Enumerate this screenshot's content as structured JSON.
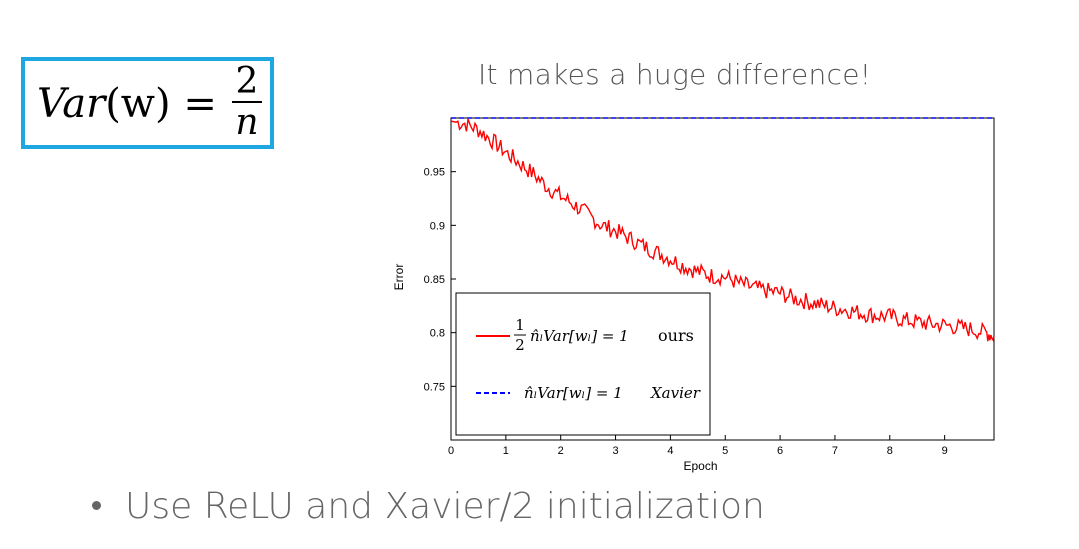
{
  "formula": {
    "lhs_fn": "Var",
    "lhs_arg": "(w)",
    "equals": "=",
    "numerator": "2",
    "denominator": "n"
  },
  "headline": "It makes a huge difference!",
  "bullet": "Use ReLU and Xavier/2 initialization",
  "colors": {
    "formula_border": "#1ea7e1",
    "ours": "#ff0000",
    "xavier": "#0000ff"
  },
  "chart_data": {
    "type": "line",
    "xlabel": "Epoch",
    "ylabel": "Error",
    "xlim": [
      0,
      9.9
    ],
    "ylim": [
      0.7,
      1.0
    ],
    "xticks": [
      0,
      1,
      2,
      3,
      4,
      5,
      6,
      7,
      8,
      9
    ],
    "yticks": [
      0.75,
      0.8,
      0.85,
      0.9,
      0.95
    ],
    "ytick_labels": [
      "0.75",
      "0.8",
      "0.85",
      "0.9",
      "0.95"
    ],
    "legend_position": "lower-left",
    "series": [
      {
        "name": "½ n̂ₗ Var[wₗ] = 1  ours",
        "legend_math": "n̂ₗVar[wₗ] = 1",
        "legend_frac": [
          "1",
          "2"
        ],
        "legend_tag": "ours",
        "color": "#ff0000",
        "style": "solid",
        "x": [
          0,
          0.25,
          0.5,
          0.75,
          1.0,
          1.25,
          1.5,
          1.75,
          2.0,
          2.25,
          2.5,
          2.75,
          3.0,
          3.25,
          3.5,
          3.75,
          4.0,
          4.25,
          4.5,
          4.75,
          5.0,
          5.25,
          5.5,
          5.75,
          6.0,
          6.25,
          6.5,
          6.75,
          7.0,
          7.25,
          7.5,
          7.75,
          8.0,
          8.25,
          8.5,
          8.75,
          9.0,
          9.25,
          9.5,
          9.75,
          9.9
        ],
        "values": [
          0.997,
          0.995,
          0.989,
          0.979,
          0.968,
          0.958,
          0.948,
          0.936,
          0.927,
          0.919,
          0.91,
          0.9,
          0.895,
          0.888,
          0.881,
          0.875,
          0.869,
          0.862,
          0.857,
          0.853,
          0.852,
          0.846,
          0.842,
          0.839,
          0.837,
          0.832,
          0.829,
          0.826,
          0.823,
          0.821,
          0.818,
          0.816,
          0.815,
          0.812,
          0.81,
          0.808,
          0.807,
          0.805,
          0.803,
          0.8,
          0.797
        ]
      },
      {
        "name": "n̂ₗ Var[wₗ] = 1  Xavier",
        "legend_math": "n̂ₗVar[wₗ] = 1",
        "legend_tag": "Xavier",
        "color": "#0000ff",
        "style": "dashed",
        "x": [
          0,
          9.9
        ],
        "values": [
          1.0,
          1.0
        ]
      }
    ]
  }
}
